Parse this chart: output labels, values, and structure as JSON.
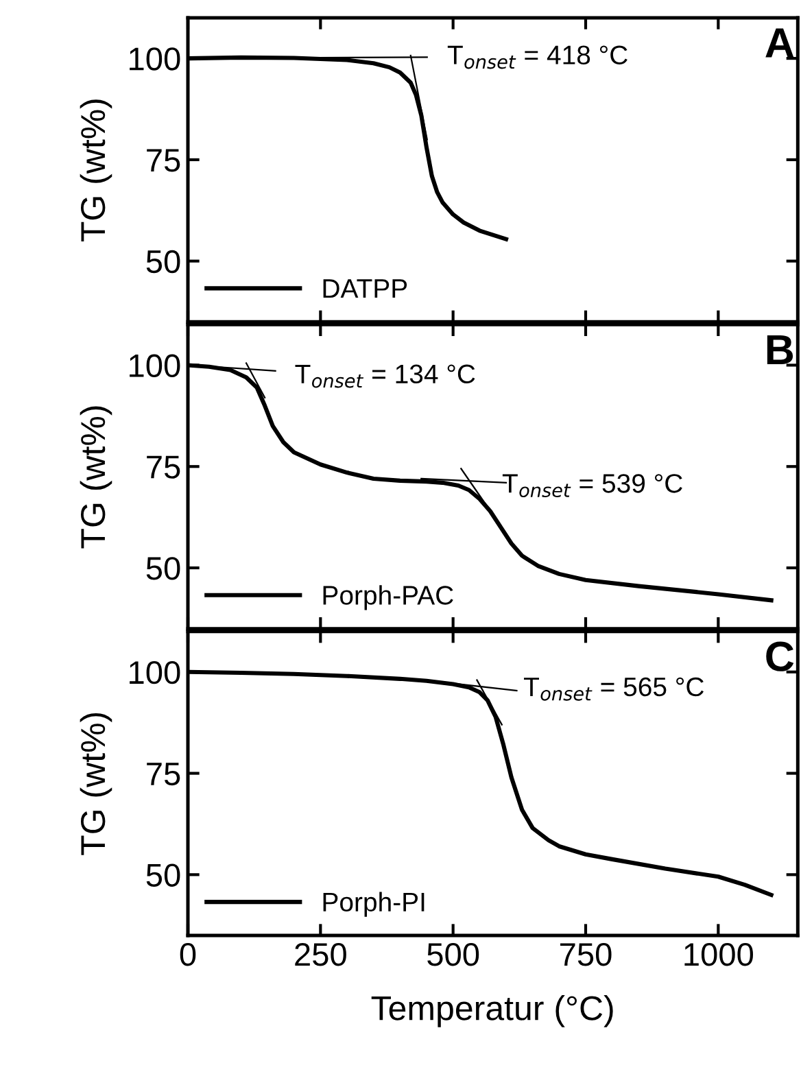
{
  "chart_data": [
    {
      "type": "line",
      "ylabel": "TG (wt%)",
      "xlim": [
        0,
        1150
      ],
      "ylim": [
        35,
        110
      ],
      "xticks": [
        0,
        250,
        500,
        750,
        1000
      ],
      "yticks": [
        50,
        75,
        100
      ],
      "tick_labels": "y",
      "legend": "bottom left",
      "annotations": [
        "T$_{onset}$ = 418 °C",
        "A"
      ],
      "series": [
        {
          "name": "DATPP",
          "color": "#000000",
          "x": [
            0,
            100,
            200,
            300,
            350,
            380,
            400,
            420,
            430,
            440,
            450,
            460,
            470,
            480,
            500,
            520,
            550,
            600
          ],
          "values": [
            100,
            100.2,
            100.1,
            99.6,
            98.8,
            97.8,
            96.5,
            94,
            91,
            86,
            78,
            71,
            67,
            64.5,
            61.5,
            59.5,
            57.5,
            55.4
          ]
        },
        {
          "color": "#000000",
          "x": [
            0,
            451
          ],
          "values": [
            100,
            100.3
          ]
        },
        {
          "color": "#000000",
          "x": [
            420,
            451
          ],
          "values": [
            100.7,
            80
          ]
        }
      ]
    },
    {
      "type": "line",
      "ylabel": "TG (wt%)",
      "xlim": [
        0,
        1150
      ],
      "ylim": [
        35,
        110
      ],
      "xticks": [
        0,
        250,
        500,
        750,
        1000
      ],
      "yticks": [
        50,
        75,
        100
      ],
      "tick_labels": "y",
      "legend": "bottom left",
      "annotations": [
        "T$_{onset}$ = 134 °C",
        "T$_{onset}$ = 539 °C",
        "B"
      ],
      "series": [
        {
          "name": "Porph-PAC",
          "color": "#000000",
          "x": [
            0,
            40,
            80,
            110,
            130,
            145,
            160,
            180,
            200,
            250,
            300,
            350,
            400,
            450,
            480,
            510,
            530,
            550,
            570,
            590,
            610,
            630,
            660,
            700,
            750,
            850,
            1000,
            1100
          ],
          "values": [
            100,
            99.6,
            98.8,
            97,
            94.5,
            90,
            85,
            81,
            78.5,
            75.5,
            73.5,
            72,
            71.5,
            71.3,
            71,
            70.3,
            69.2,
            67,
            64,
            60,
            56,
            53,
            50.5,
            48.5,
            47,
            45.5,
            43.5,
            42
          ]
        },
        {
          "color": "#000000",
          "x": [
            50,
            165
          ],
          "values": [
            99.6,
            98.6
          ]
        },
        {
          "color": "#000000",
          "x": [
            110,
            145
          ],
          "values": [
            100.5,
            92
          ]
        },
        {
          "color": "#000000",
          "x": [
            440,
            600
          ],
          "values": [
            72,
            71
          ]
        },
        {
          "color": "#000000",
          "x": [
            515,
            565
          ],
          "values": [
            74.5,
            65
          ]
        }
      ]
    },
    {
      "type": "line",
      "ylabel": "TG (wt%)",
      "xlabel": "Temperatur (°C)",
      "xlim": [
        0,
        1150
      ],
      "ylim": [
        35,
        110
      ],
      "xticks": [
        0,
        250,
        500,
        750,
        1000
      ],
      "yticks": [
        50,
        75,
        100
      ],
      "legend": "bottom left",
      "annotations": [
        "T$_{onset}$ = 565 °C",
        "C"
      ],
      "series": [
        {
          "name": "Porph-PI",
          "color": "#000000",
          "x": [
            0,
            100,
            200,
            300,
            400,
            450,
            500,
            530,
            550,
            565,
            580,
            595,
            610,
            630,
            650,
            680,
            700,
            750,
            800,
            900,
            1000,
            1050,
            1100
          ],
          "values": [
            100,
            99.8,
            99.5,
            99,
            98.3,
            97.8,
            97,
            96.2,
            95,
            93,
            89,
            82,
            74,
            66,
            61.5,
            58.5,
            57,
            55,
            53.8,
            51.5,
            49.5,
            47.5,
            45
          ]
        },
        {
          "color": "#000000",
          "x": [
            470,
            620
          ],
          "values": [
            97.6,
            95.4
          ]
        },
        {
          "color": "#000000",
          "x": [
            545,
            592
          ],
          "values": [
            98,
            87
          ]
        }
      ]
    }
  ]
}
